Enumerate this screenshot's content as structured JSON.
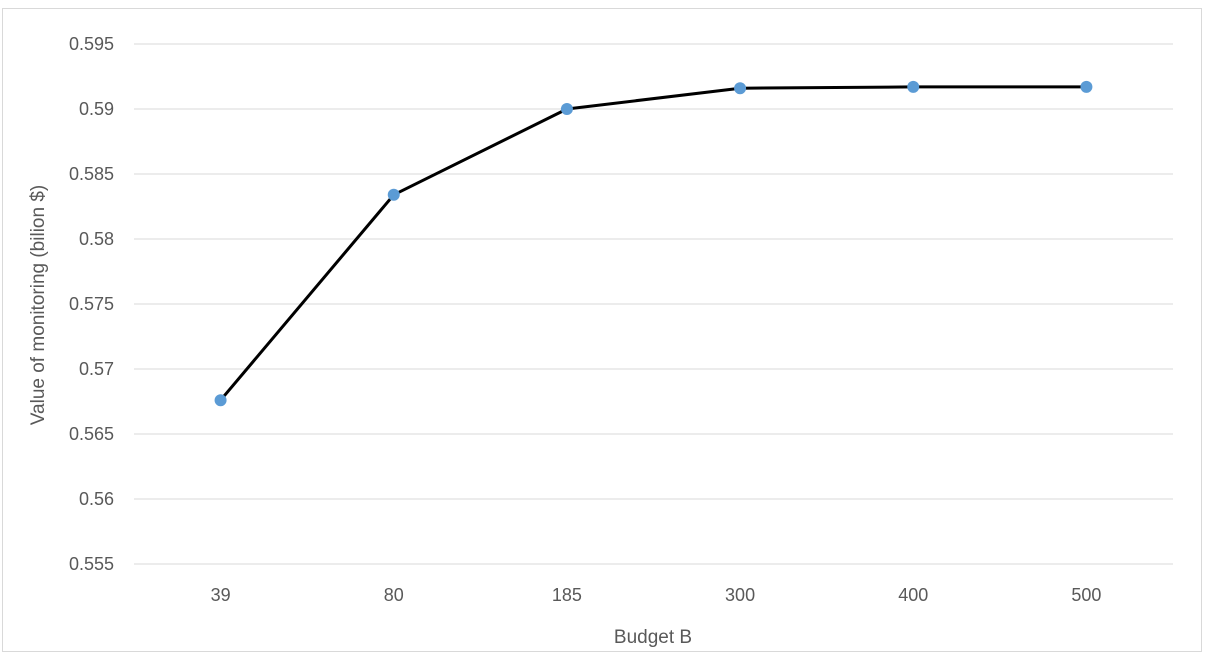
{
  "chart_data": {
    "type": "line",
    "title": "",
    "xlabel": "Budget B",
    "ylabel": "Value of monitoring (bilion $)",
    "categories": [
      "39",
      "80",
      "185",
      "300",
      "400",
      "500"
    ],
    "series": [
      {
        "values": [
          0.5676,
          0.5834,
          0.59,
          0.5916,
          0.5917,
          0.5917
        ]
      }
    ],
    "ylim": [
      0.555,
      0.595
    ],
    "yticks": [
      0.555,
      0.56,
      0.565,
      0.57,
      0.575,
      0.58,
      0.585,
      0.59,
      0.595
    ],
    "ytick_labels": [
      "0.555",
      "0.56",
      "0.565",
      "0.57",
      "0.575",
      "0.58",
      "0.585",
      "0.59",
      "0.595"
    ],
    "grid": true,
    "legend": "none",
    "colors": {
      "line": "#000000",
      "marker": "#5b9bd5",
      "grid": "#d9d9d9",
      "text": "#595959"
    }
  }
}
